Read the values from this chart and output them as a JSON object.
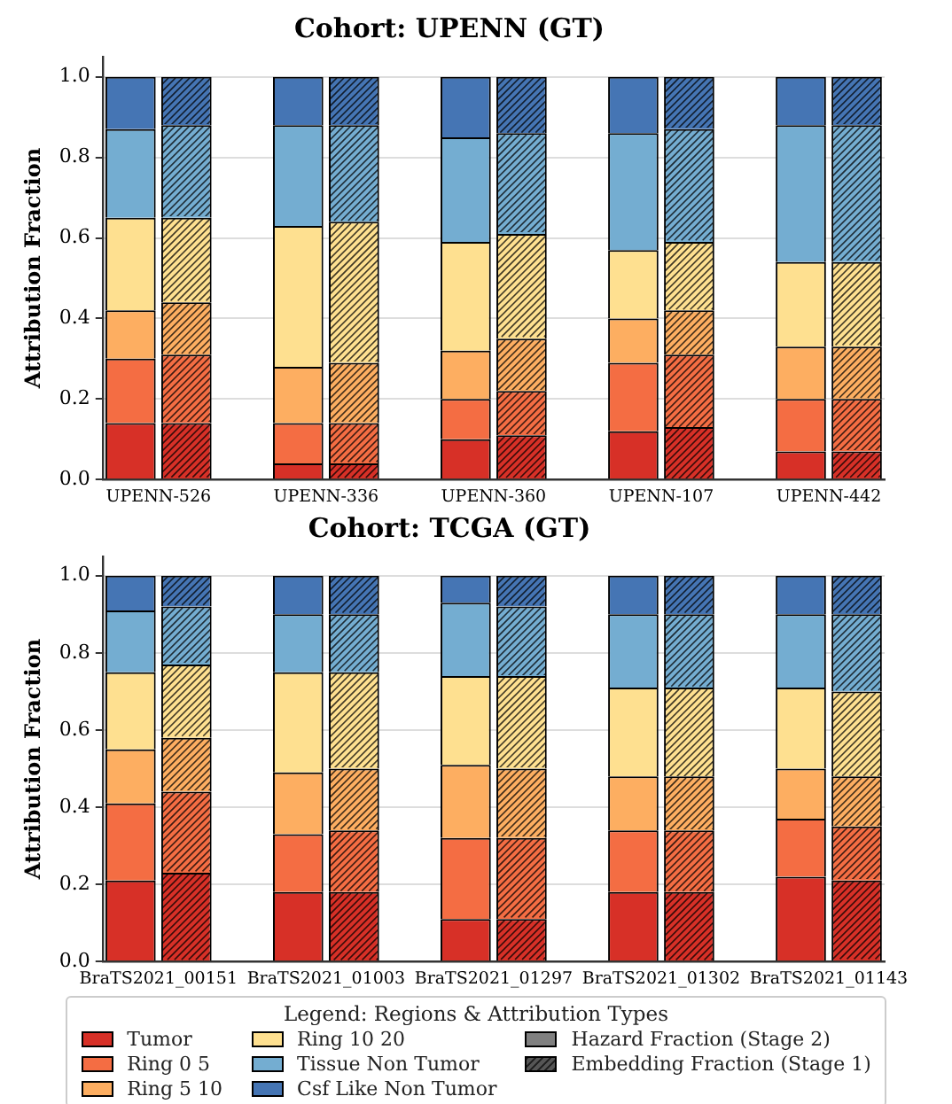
{
  "chart_data": [
    {
      "type": "bar",
      "title": "Cohort: UPENN (GT)",
      "ylabel": "Attribution Fraction",
      "stacked": true,
      "categories": [
        "UPENN-526",
        null,
        null,
        "UPENN-336",
        null,
        null,
        "UPENN-360",
        null,
        null,
        "UPENN-107",
        null,
        null,
        "UPENN-442",
        null
      ],
      "ylim": [
        0,
        1.05
      ],
      "yticks": [
        {
          "value": 0,
          "label": "0.0"
        },
        {
          "value": 0.2,
          "label": "0.2"
        },
        {
          "value": 0.4,
          "label": "0.4"
        },
        {
          "value": 0.6,
          "label": "0.6"
        },
        {
          "value": 0.8,
          "label": "0.8"
        },
        {
          "value": 1,
          "label": "1.0"
        }
      ],
      "grid": "y",
      "legend": false,
      "series": [
        {
          "color": "#d73027",
          "values": [
            0.14,
            0.14,
            null,
            0.04,
            0.04,
            null,
            0.1,
            0.11,
            null,
            0.12,
            0.13,
            null,
            0.07,
            0.07
          ]
        },
        {
          "color": "#f46d43",
          "values": [
            0.16,
            0.17,
            null,
            0.1,
            0.1,
            null,
            0.1,
            0.11,
            null,
            0.17,
            0.18,
            null,
            0.13,
            0.13
          ]
        },
        {
          "color": "#fdae61",
          "values": [
            0.12,
            0.13,
            null,
            0.14,
            0.15,
            null,
            0.12,
            0.13,
            null,
            0.11,
            0.11,
            null,
            0.13,
            0.13
          ]
        },
        {
          "color": "#fee090",
          "values": [
            0.23,
            0.21,
            null,
            0.35,
            0.35,
            null,
            0.27,
            0.26,
            null,
            0.17,
            0.17,
            null,
            0.21,
            0.21
          ]
        },
        {
          "color": "#74add1",
          "values": [
            0.22,
            0.23,
            null,
            0.25,
            0.24,
            null,
            0.26,
            0.25,
            null,
            0.29,
            0.28,
            null,
            0.34,
            0.34
          ]
        },
        {
          "color": "#4575b4",
          "values": [
            0.13,
            0.12,
            null,
            0.12,
            0.12,
            null,
            0.15,
            0.14,
            null,
            0.14,
            0.13,
            null,
            0.12,
            0.12
          ]
        }
      ]
    },
    {
      "type": "bar",
      "title": "Cohort: TCGA (GT)",
      "ylabel": "Attribution Fraction",
      "stacked": true,
      "categories": [
        "BraTS2021_00151",
        null,
        null,
        "BraTS2021_01003",
        null,
        null,
        "BraTS2021_01297",
        null,
        null,
        "BraTS2021_01302",
        null,
        null,
        "BraTS2021_01143",
        null
      ],
      "ylim": [
        0,
        1.05
      ],
      "yticks": [
        {
          "value": 0,
          "label": "0.0"
        },
        {
          "value": 0.2,
          "label": "0.2"
        },
        {
          "value": 0.4,
          "label": "0.4"
        },
        {
          "value": 0.6,
          "label": "0.6"
        },
        {
          "value": 0.8,
          "label": "0.8"
        },
        {
          "value": 1,
          "label": "1.0"
        }
      ],
      "grid": "y",
      "legend": "bottom",
      "legend_title": "Legend: Regions & Attribution Types",
      "series": [
        {
          "name": "Tumor",
          "color": "#d73027",
          "values": [
            0.21,
            0.23,
            null,
            0.18,
            0.18,
            null,
            0.11,
            0.11,
            null,
            0.18,
            0.18,
            null,
            0.22,
            0.21
          ]
        },
        {
          "name": "Ring 0 5",
          "color": "#f46d43",
          "values": [
            0.2,
            0.21,
            null,
            0.15,
            0.16,
            null,
            0.21,
            0.21,
            null,
            0.16,
            0.16,
            null,
            0.15,
            0.14
          ]
        },
        {
          "name": "Ring 5 10",
          "color": "#fdae61",
          "values": [
            0.14,
            0.14,
            null,
            0.16,
            0.16,
            null,
            0.19,
            0.18,
            null,
            0.14,
            0.14,
            null,
            0.13,
            0.13
          ]
        },
        {
          "name": "Ring 10 20",
          "color": "#fee090",
          "values": [
            0.2,
            0.19,
            null,
            0.26,
            0.25,
            null,
            0.23,
            0.24,
            null,
            0.23,
            0.23,
            null,
            0.21,
            0.22
          ]
        },
        {
          "name": "Tissue Non Tumor",
          "color": "#74add1",
          "values": [
            0.16,
            0.15,
            null,
            0.15,
            0.15,
            null,
            0.19,
            0.18,
            null,
            0.19,
            0.19,
            null,
            0.19,
            0.2
          ]
        },
        {
          "name": "Csf Like Non Tumor",
          "color": "#4575b4",
          "values": [
            0.09,
            0.08,
            null,
            0.1,
            0.1,
            null,
            0.07,
            0.08,
            null,
            0.1,
            0.1,
            null,
            0.1,
            0.1
          ]
        },
        {
          "name": "Hazard Fraction (Stage 2)",
          "color": "#808080",
          "values": [
            null,
            null,
            null,
            null,
            null,
            null,
            null,
            null,
            null,
            null,
            null,
            null,
            null,
            null
          ]
        },
        {
          "name": "Embedding Fraction (Stage 1)",
          "color": "#555555",
          "values": [
            null,
            null,
            null,
            null,
            null,
            null,
            null,
            null,
            null,
            null,
            null,
            null,
            null,
            null
          ]
        }
      ]
    }
  ]
}
